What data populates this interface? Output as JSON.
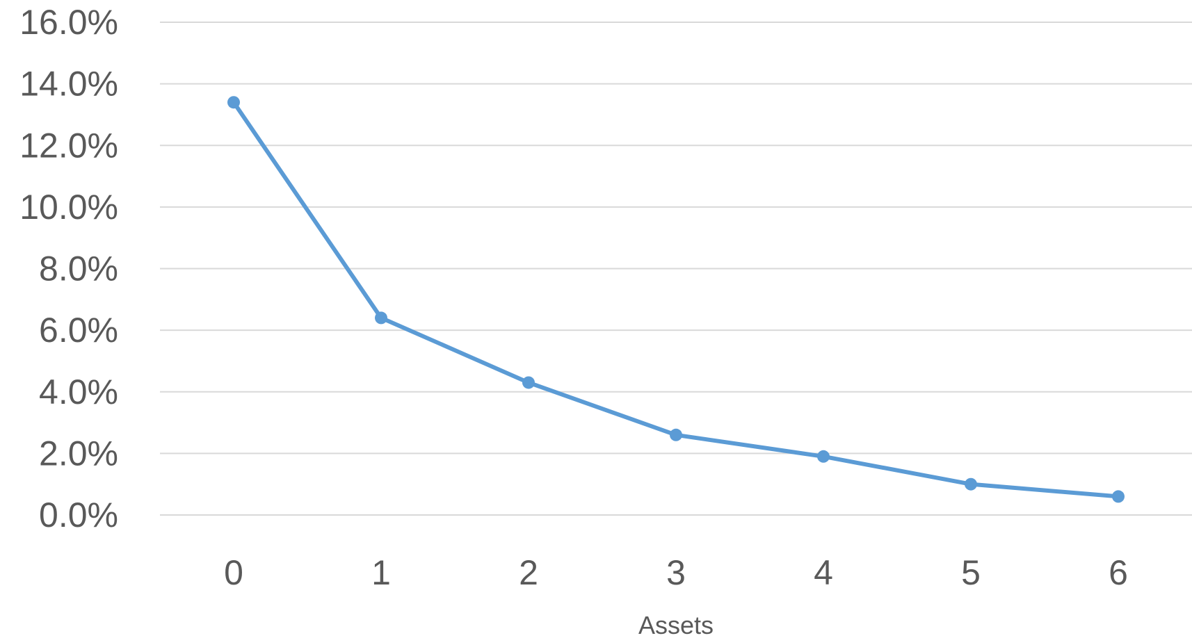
{
  "chart_data": {
    "type": "line",
    "title": "",
    "xlabel": "Assets",
    "ylabel": "",
    "categories": [
      "0",
      "1",
      "2",
      "3",
      "4",
      "5",
      "6"
    ],
    "series": [
      {
        "values": [
          13.4,
          6.4,
          4.3,
          2.6,
          1.9,
          1.0,
          0.6
        ],
        "color": "#5b9bd5"
      }
    ],
    "ylim": [
      0,
      16
    ],
    "y_ticks": [
      "0.0%",
      "2.0%",
      "4.0%",
      "6.0%",
      "8.0%",
      "10.0%",
      "12.0%",
      "14.0%",
      "16.0%"
    ],
    "grid": true,
    "legend": "none",
    "colors": {
      "grid": "#d9d9d9",
      "text": "#595959"
    }
  }
}
